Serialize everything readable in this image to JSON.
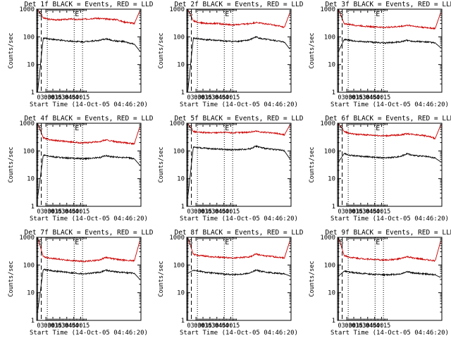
{
  "chart_data": [
    {
      "type": "line",
      "title": "Det 1f BLACK = Events, RED = LLD",
      "xlabel": "Start Time (14-Oct-05 04:46:20)",
      "ylabel": "Counts/sec",
      "yscale": "log",
      "ylim": [
        1,
        1000
      ],
      "xlim": [
        "02:40",
        "06:25"
      ],
      "xticks": [
        "03:00",
        "03:15",
        "03:30",
        "03:45",
        "04:00",
        "04:15"
      ],
      "yticks": [
        "1",
        "10",
        "100",
        "1000"
      ],
      "markers": [
        {
          "label": "S",
          "time": "02:42",
          "style": "solid"
        },
        {
          "label": "E",
          "time": "04:01",
          "style": "dotted"
        }
      ],
      "vlines": [
        {
          "time": "02:50",
          "style": "dashed"
        },
        {
          "time": "03:03",
          "style": "dotted"
        },
        {
          "time": "04:01",
          "style": "dotted"
        },
        {
          "time": "04:19",
          "style": "dotted"
        }
      ],
      "series": [
        {
          "color": "#cc0000",
          "values": [
            1000,
            480,
            430,
            420,
            410,
            430,
            440,
            420,
            430,
            450,
            470,
            460,
            440,
            430,
            420,
            350,
            330,
            300,
            900
          ]
        },
        {
          "color": "#000000",
          "values": [
            1,
            90,
            85,
            80,
            75,
            72,
            70,
            68,
            66,
            70,
            72,
            75,
            85,
            75,
            70,
            68,
            60,
            55,
            30
          ]
        }
      ]
    },
    {
      "type": "line",
      "title": "Det 2f BLACK = Events, RED = LLD",
      "xlabel": "Start Time (14-Oct-05 04:46:20)",
      "ylabel": "Counts/sec",
      "yscale": "log",
      "ylim": [
        1,
        1000
      ],
      "xlim": [
        "02:40",
        "06:25"
      ],
      "xticks": [
        "03:00",
        "03:15",
        "03:30",
        "03:45",
        "04:00",
        "04:15"
      ],
      "yticks": [
        "1",
        "10",
        "100",
        "1000"
      ],
      "markers": [
        {
          "label": "S",
          "time": "02:42",
          "style": "solid"
        },
        {
          "label": "E",
          "time": "04:01",
          "style": "dotted"
        }
      ],
      "vlines": [
        {
          "time": "02:50",
          "style": "dashed"
        },
        {
          "time": "03:03",
          "style": "dotted"
        },
        {
          "time": "04:01",
          "style": "dotted"
        },
        {
          "time": "04:19",
          "style": "dotted"
        }
      ],
      "series": [
        {
          "color": "#cc0000",
          "values": [
            1000,
            380,
            330,
            310,
            300,
            310,
            290,
            280,
            270,
            280,
            290,
            300,
            330,
            310,
            290,
            270,
            250,
            220,
            800
          ]
        },
        {
          "color": "#000000",
          "values": [
            1,
            90,
            85,
            80,
            78,
            75,
            72,
            70,
            68,
            70,
            72,
            80,
            100,
            85,
            80,
            75,
            70,
            65,
            35
          ]
        }
      ]
    },
    {
      "type": "line",
      "title": "Det 3f BLACK = Events, RED = LLD",
      "xlabel": "Start Time (14-Oct-05 04:46:20)",
      "ylabel": "Counts/sec",
      "yscale": "log",
      "ylim": [
        1,
        1000
      ],
      "xlim": [
        "02:40",
        "06:25"
      ],
      "xticks": [
        "03:00",
        "03:15",
        "03:30",
        "03:45",
        "04:00",
        "04:15"
      ],
      "yticks": [
        "1",
        "10",
        "100",
        "1000"
      ],
      "markers": [
        {
          "label": "S",
          "time": "02:42",
          "style": "solid"
        },
        {
          "label": "E",
          "time": "04:01",
          "style": "dotted"
        }
      ],
      "vlines": [
        {
          "time": "02:50",
          "style": "dashed"
        },
        {
          "time": "03:03",
          "style": "dotted"
        },
        {
          "time": "04:01",
          "style": "dotted"
        },
        {
          "time": "04:19",
          "style": "dotted"
        }
      ],
      "series": [
        {
          "color": "#cc0000",
          "values": [
            1000,
            300,
            280,
            260,
            250,
            240,
            230,
            225,
            220,
            225,
            230,
            240,
            260,
            250,
            230,
            220,
            210,
            200,
            800
          ]
        },
        {
          "color": "#000000",
          "values": [
            30,
            80,
            75,
            70,
            68,
            66,
            64,
            62,
            60,
            62,
            64,
            66,
            75,
            70,
            68,
            66,
            64,
            60,
            40
          ]
        }
      ]
    },
    {
      "type": "line",
      "title": "Det 4f BLACK = Events, RED = LLD",
      "xlabel": "Start Time (14-Oct-05 04:46:20)",
      "ylabel": "Counts/sec",
      "yscale": "log",
      "ylim": [
        1,
        1000
      ],
      "xlim": [
        "02:40",
        "06:25"
      ],
      "xticks": [
        "03:00",
        "03:15",
        "03:30",
        "03:45",
        "04:00",
        "04:15"
      ],
      "yticks": [
        "1",
        "10",
        "100",
        "1000"
      ],
      "markers": [
        {
          "label": "S",
          "time": "02:42",
          "style": "solid"
        },
        {
          "label": "E",
          "time": "04:01",
          "style": "dotted"
        }
      ],
      "vlines": [
        {
          "time": "02:50",
          "style": "dashed"
        },
        {
          "time": "03:03",
          "style": "dotted"
        },
        {
          "time": "04:01",
          "style": "dotted"
        },
        {
          "time": "04:19",
          "style": "dotted"
        }
      ],
      "series": [
        {
          "color": "#cc0000",
          "values": [
            1000,
            300,
            260,
            240,
            230,
            220,
            210,
            200,
            195,
            200,
            210,
            220,
            250,
            230,
            210,
            200,
            190,
            180,
            800
          ]
        },
        {
          "color": "#000000",
          "values": [
            2,
            70,
            65,
            60,
            58,
            56,
            55,
            54,
            52,
            54,
            56,
            58,
            68,
            62,
            60,
            58,
            56,
            52,
            30
          ]
        }
      ]
    },
    {
      "type": "line",
      "title": "Det 5f BLACK = Events, RED = LLD",
      "xlabel": "Start Time (14-Oct-05 04:46:20)",
      "ylabel": "Counts/sec",
      "yscale": "log",
      "ylim": [
        1,
        1000
      ],
      "xlim": [
        "02:40",
        "06:25"
      ],
      "xticks": [
        "03:00",
        "03:15",
        "03:30",
        "03:45",
        "04:00",
        "04:15"
      ],
      "yticks": [
        "1",
        "10",
        "100",
        "1000"
      ],
      "markers": [
        {
          "label": "S",
          "time": "02:42",
          "style": "solid"
        },
        {
          "label": "E",
          "time": "04:01",
          "style": "dotted"
        }
      ],
      "vlines": [
        {
          "time": "02:50",
          "style": "dashed"
        },
        {
          "time": "03:03",
          "style": "dotted"
        },
        {
          "time": "04:01",
          "style": "dotted"
        },
        {
          "time": "04:19",
          "style": "dotted"
        }
      ],
      "series": [
        {
          "color": "#cc0000",
          "values": [
            1000,
            500,
            470,
            460,
            450,
            460,
            470,
            460,
            450,
            460,
            470,
            480,
            520,
            480,
            460,
            440,
            420,
            380,
            900
          ]
        },
        {
          "color": "#000000",
          "values": [
            2,
            140,
            130,
            125,
            120,
            118,
            115,
            112,
            110,
            112,
            115,
            120,
            150,
            130,
            120,
            115,
            110,
            100,
            50
          ]
        }
      ]
    },
    {
      "type": "line",
      "title": "Det 6f BLACK = Events, RED = LLD",
      "xlabel": "Start Time (14-Oct-05 04:46:20)",
      "ylabel": "Counts/sec",
      "yscale": "log",
      "ylim": [
        1,
        1000
      ],
      "xlim": [
        "02:40",
        "06:25"
      ],
      "xticks": [
        "03:00",
        "03:15",
        "03:30",
        "03:45",
        "04:00",
        "04:15"
      ],
      "yticks": [
        "1",
        "10",
        "100",
        "1000"
      ],
      "markers": [
        {
          "label": "S",
          "time": "02:42",
          "style": "solid"
        },
        {
          "label": "E",
          "time": "04:01",
          "style": "dotted"
        }
      ],
      "vlines": [
        {
          "time": "02:50",
          "style": "dashed"
        },
        {
          "time": "03:03",
          "style": "dotted"
        },
        {
          "time": "04:01",
          "style": "dotted"
        },
        {
          "time": "04:19",
          "style": "dotted"
        }
      ],
      "series": [
        {
          "color": "#cc0000",
          "values": [
            1000,
            500,
            430,
            400,
            390,
            380,
            370,
            360,
            350,
            360,
            370,
            380,
            420,
            400,
            380,
            360,
            330,
            280,
            900
          ]
        },
        {
          "color": "#000000",
          "values": [
            40,
            80,
            70,
            66,
            64,
            62,
            60,
            58,
            56,
            58,
            60,
            64,
            80,
            70,
            66,
            64,
            60,
            55,
            40
          ]
        }
      ]
    },
    {
      "type": "line",
      "title": "Det 7f BLACK = Events, RED = LLD",
      "xlabel": "Start Time (14-Oct-05 04:46:20)",
      "ylabel": "Counts/sec",
      "yscale": "log",
      "ylim": [
        1,
        1000
      ],
      "xlim": [
        "02:40",
        "06:25"
      ],
      "xticks": [
        "03:00",
        "03:15",
        "03:30",
        "03:45",
        "04:00",
        "04:15"
      ],
      "yticks": [
        "1",
        "10",
        "100",
        "1000"
      ],
      "markers": [
        {
          "label": "S",
          "time": "02:42",
          "style": "solid"
        },
        {
          "label": "E",
          "time": "04:01",
          "style": "dotted"
        }
      ],
      "vlines": [
        {
          "time": "02:50",
          "style": "dashed"
        },
        {
          "time": "03:03",
          "style": "dotted"
        },
        {
          "time": "04:01",
          "style": "dotted"
        },
        {
          "time": "04:19",
          "style": "dotted"
        }
      ],
      "series": [
        {
          "color": "#cc0000",
          "values": [
            1000,
            200,
            180,
            170,
            160,
            150,
            145,
            140,
            135,
            140,
            145,
            155,
            190,
            170,
            160,
            150,
            145,
            140,
            800
          ]
        },
        {
          "color": "#000000",
          "values": [
            2,
            70,
            65,
            60,
            58,
            55,
            52,
            50,
            48,
            50,
            52,
            55,
            65,
            60,
            56,
            54,
            52,
            50,
            30
          ]
        }
      ]
    },
    {
      "type": "line",
      "title": "Det 8f BLACK = Events, RED = LLD",
      "xlabel": "Start Time (14-Oct-05 04:46:20)",
      "ylabel": "Counts/sec",
      "yscale": "log",
      "ylim": [
        1,
        1000
      ],
      "xlim": [
        "02:40",
        "06:25"
      ],
      "xticks": [
        "03:00",
        "03:15",
        "03:30",
        "03:45",
        "04:00",
        "04:15"
      ],
      "yticks": [
        "1",
        "10",
        "100",
        "1000"
      ],
      "markers": [
        {
          "label": "S",
          "time": "02:42",
          "style": "solid"
        },
        {
          "label": "E",
          "time": "04:01",
          "style": "dotted"
        }
      ],
      "vlines": [
        {
          "time": "02:50",
          "style": "dashed"
        },
        {
          "time": "03:03",
          "style": "dotted"
        },
        {
          "time": "04:01",
          "style": "dotted"
        },
        {
          "time": "04:19",
          "style": "dotted"
        }
      ],
      "series": [
        {
          "color": "#cc0000",
          "values": [
            1000,
            240,
            220,
            210,
            200,
            195,
            190,
            185,
            180,
            185,
            190,
            200,
            250,
            220,
            210,
            200,
            190,
            180,
            800
          ]
        },
        {
          "color": "#000000",
          "values": [
            50,
            65,
            60,
            55,
            52,
            50,
            48,
            46,
            45,
            46,
            48,
            52,
            65,
            58,
            55,
            52,
            50,
            48,
            40
          ]
        }
      ]
    },
    {
      "type": "line",
      "title": "Det 9f BLACK = Events, RED = LLD",
      "xlabel": "Start Time (14-Oct-05 04:46:20)",
      "ylabel": "Counts/sec",
      "yscale": "log",
      "ylim": [
        1,
        1000
      ],
      "xlim": [
        "02:40",
        "06:25"
      ],
      "xticks": [
        "03:00",
        "03:15",
        "03:30",
        "03:45",
        "04:00",
        "04:15"
      ],
      "yticks": [
        "1",
        "10",
        "100",
        "1000"
      ],
      "markers": [
        {
          "label": "S",
          "time": "02:42",
          "style": "solid"
        },
        {
          "label": "E",
          "time": "04:01",
          "style": "dotted"
        }
      ],
      "vlines": [
        {
          "time": "02:50",
          "style": "dashed"
        },
        {
          "time": "03:03",
          "style": "dotted"
        },
        {
          "time": "04:01",
          "style": "dotted"
        },
        {
          "time": "04:19",
          "style": "dotted"
        }
      ],
      "series": [
        {
          "color": "#cc0000",
          "values": [
            1000,
            220,
            190,
            180,
            170,
            165,
            160,
            155,
            150,
            155,
            160,
            170,
            200,
            180,
            170,
            160,
            150,
            140,
            800
          ]
        },
        {
          "color": "#000000",
          "values": [
            40,
            60,
            55,
            52,
            50,
            48,
            46,
            45,
            44,
            45,
            46,
            48,
            58,
            52,
            50,
            48,
            46,
            44,
            35
          ]
        }
      ]
    }
  ]
}
